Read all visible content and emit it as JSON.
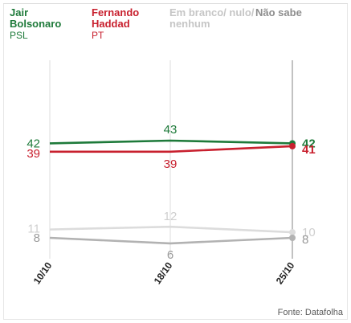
{
  "chart_data": {
    "type": "line",
    "x": [
      "10/10",
      "18/10",
      "25/10"
    ],
    "series": [
      {
        "key": "bolsonaro",
        "name": "Jair Bolsonaro",
        "party": "PSL",
        "values": [
          42,
          43,
          42
        ],
        "color": "#1e7a3a"
      },
      {
        "key": "haddad",
        "name": "Fernando Haddad",
        "party": "PT",
        "values": [
          39,
          39,
          41
        ],
        "color": "#c8202e"
      },
      {
        "key": "branco",
        "name": "Em branco/ nulo/ nenhum",
        "party": "",
        "values": [
          11,
          12,
          10
        ],
        "color": "#dcdcdc"
      },
      {
        "key": "naosabe",
        "name": "Não sabe",
        "party": "",
        "values": [
          8,
          6,
          8
        ],
        "color": "#b2b2b2"
      }
    ],
    "label_colors": {
      "bolsonaro": "#1e7a3a",
      "haddad": "#c8202e",
      "branco": "#cfcfcf",
      "naosabe": "#9a9a9a"
    },
    "source": "Fonte: Datafolha"
  },
  "legend": {
    "bolsonaro": {
      "name": "Jair Bolsonaro",
      "party": "PSL"
    },
    "haddad": {
      "name": "Fernando Haddad",
      "party": "PT"
    },
    "branco": {
      "name": "Em branco/ nulo/ nenhum"
    },
    "naosabe": {
      "name": "Não sabe"
    }
  }
}
